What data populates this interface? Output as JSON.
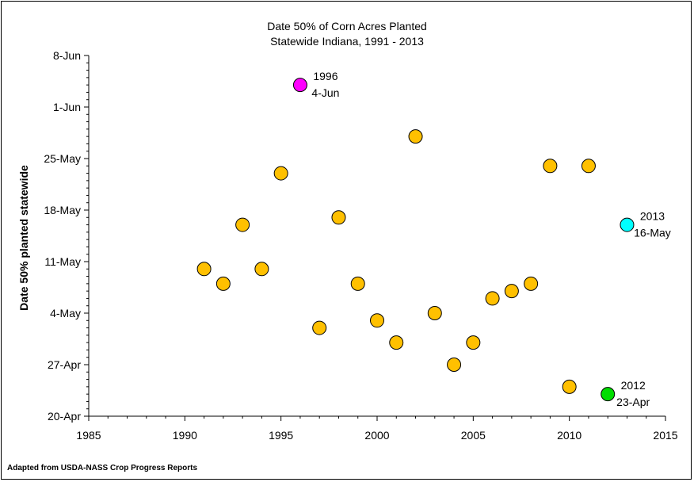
{
  "chart_data": {
    "type": "scatter",
    "title": "Date 50% of Corn Acres Planted",
    "subtitle": "Statewide Indiana, 1991 - 2013",
    "xlabel": "",
    "ylabel": "Date 50% planted statewide",
    "xlim": [
      1985,
      2015
    ],
    "xticks": [
      "1985",
      "1990",
      "1995",
      "2000",
      "2005",
      "2010",
      "2015"
    ],
    "ylim": [
      "20-Apr",
      "8-Jun"
    ],
    "yticks": [
      "20-Apr",
      "27-Apr",
      "4-May",
      "11-May",
      "18-May",
      "25-May",
      "1-Jun",
      "8-Jun"
    ],
    "grid": false,
    "points": [
      {
        "x": 1991,
        "y": "10-May"
      },
      {
        "x": 1992,
        "y": "8-May"
      },
      {
        "x": 1993,
        "y": "16-May"
      },
      {
        "x": 1994,
        "y": "10-May"
      },
      {
        "x": 1995,
        "y": "23-May"
      },
      {
        "x": 1996,
        "y": "4-Jun"
      },
      {
        "x": 1997,
        "y": "2-May"
      },
      {
        "x": 1998,
        "y": "17-May"
      },
      {
        "x": 1999,
        "y": "8-May"
      },
      {
        "x": 2000,
        "y": "3-May"
      },
      {
        "x": 2001,
        "y": "30-Apr"
      },
      {
        "x": 2002,
        "y": "28-May"
      },
      {
        "x": 2003,
        "y": "4-May"
      },
      {
        "x": 2004,
        "y": "27-Apr"
      },
      {
        "x": 2005,
        "y": "30-Apr"
      },
      {
        "x": 2006,
        "y": "6-May"
      },
      {
        "x": 2007,
        "y": "7-May"
      },
      {
        "x": 2008,
        "y": "8-May"
      },
      {
        "x": 2009,
        "y": "24-May"
      },
      {
        "x": 2010,
        "y": "24-Apr"
      },
      {
        "x": 2011,
        "y": "24-May"
      },
      {
        "x": 2012,
        "y": "23-Apr"
      },
      {
        "x": 2013,
        "y": "16-May"
      }
    ],
    "colors": {
      "default": "#FFC000",
      "1996": "#FF00FF",
      "2012": "#00DD00",
      "2013": "#00FFFF",
      "marker_edge": "#000000"
    },
    "annotations": [
      {
        "year": 1996,
        "line1": "1996",
        "line2": "4-Jun"
      },
      {
        "year": 2013,
        "line1": "2013",
        "line2": "16-May"
      },
      {
        "year": 2012,
        "line1": "2012",
        "line2": "23-Apr"
      }
    ]
  },
  "footer": "Adapted from USDA-NASS Crop Progress Reports"
}
